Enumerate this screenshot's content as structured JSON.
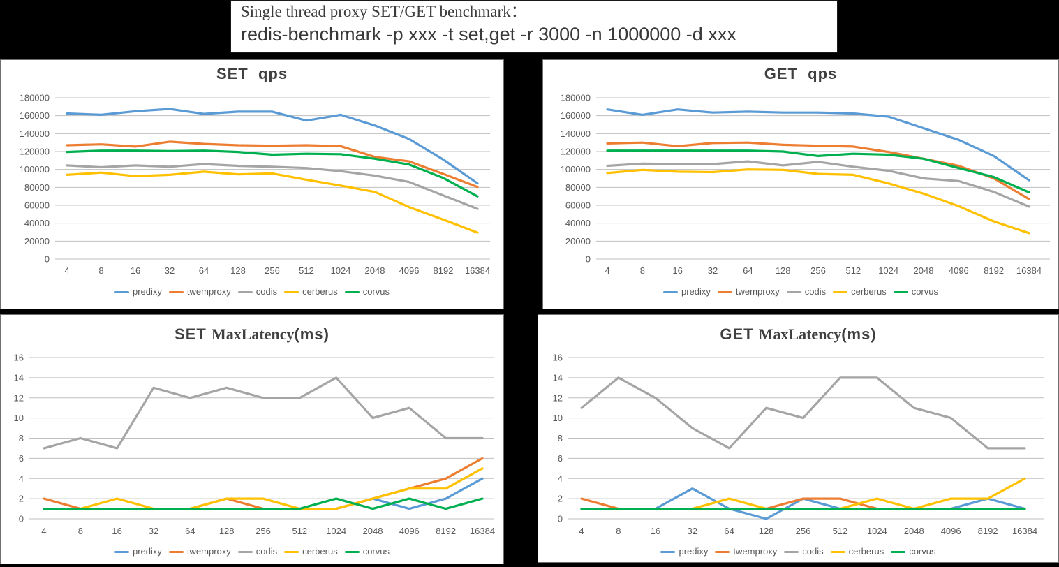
{
  "header": {
    "line1": "Single thread proxy SET/GET benchmark：",
    "line2": "redis-benchmark -p xxx -t set,get -r 3000 -n 1000000 -d xxx"
  },
  "colors": {
    "predixy": "#5B9BD5",
    "twemproxy": "#ED7D31",
    "codis": "#A5A5A5",
    "cerberus": "#FFC000",
    "corvus": "#00B050",
    "grid": "#BFBFBF",
    "axis_text": "#595959",
    "title_text": "#404040"
  },
  "legend": [
    "predixy",
    "twemproxy",
    "codis",
    "cerberus",
    "corvus"
  ],
  "chart_data": [
    {
      "type": "line",
      "id": "set-qps",
      "title": "SET  qps",
      "title_runs": [
        {
          "text": "SET  qps",
          "font": "sans"
        }
      ],
      "categories": [
        "4",
        "8",
        "16",
        "32",
        "64",
        "128",
        "256",
        "512",
        "1024",
        "2048",
        "4096",
        "8192",
        "16384"
      ],
      "xlabel": "",
      "ylabel": "",
      "ylim": [
        0,
        180000
      ],
      "ystep": 20000,
      "grid": true,
      "legend_position": "bottom",
      "series": [
        {
          "name": "predixy",
          "values": [
            162500,
            161000,
            165000,
            167500,
            162000,
            164500,
            164500,
            154500,
            161000,
            149000,
            134000,
            111000,
            84500
          ]
        },
        {
          "name": "twemproxy",
          "values": [
            127000,
            128000,
            125500,
            131000,
            128500,
            127000,
            126500,
            127000,
            126000,
            114000,
            109000,
            95000,
            80500
          ]
        },
        {
          "name": "codis",
          "values": [
            104500,
            102500,
            104500,
            103000,
            106000,
            104000,
            103000,
            101500,
            98000,
            93000,
            86000,
            71000,
            56000
          ]
        },
        {
          "name": "cerberus",
          "values": [
            94000,
            96500,
            92500,
            94000,
            97500,
            94500,
            95500,
            88500,
            82000,
            75000,
            58000,
            44000,
            29500
          ]
        },
        {
          "name": "corvus",
          "values": [
            119500,
            121000,
            121000,
            120500,
            121000,
            119500,
            116500,
            117500,
            117000,
            112000,
            105500,
            90500,
            70000
          ]
        }
      ]
    },
    {
      "type": "line",
      "id": "get-qps",
      "title": "GET  qps",
      "title_runs": [
        {
          "text": "GET  qps",
          "font": "sans"
        }
      ],
      "categories": [
        "4",
        "8",
        "16",
        "32",
        "64",
        "128",
        "256",
        "512",
        "1024",
        "2048",
        "4096",
        "8192",
        "16384"
      ],
      "xlabel": "",
      "ylabel": "",
      "ylim": [
        0,
        180000
      ],
      "ystep": 20000,
      "grid": true,
      "legend_position": "bottom",
      "series": [
        {
          "name": "predixy",
          "values": [
            167000,
            161000,
            167000,
            163500,
            164500,
            163500,
            163500,
            162500,
            159000,
            146000,
            133000,
            115000,
            88000
          ]
        },
        {
          "name": "twemproxy",
          "values": [
            129000,
            130000,
            126000,
            129500,
            130000,
            127500,
            126500,
            125500,
            119500,
            112000,
            104000,
            90000,
            67000
          ]
        },
        {
          "name": "codis",
          "values": [
            104000,
            106500,
            106000,
            106000,
            109000,
            104500,
            108500,
            103000,
            98500,
            90000,
            87000,
            75000,
            58500
          ]
        },
        {
          "name": "cerberus",
          "values": [
            96000,
            99500,
            97500,
            97000,
            100000,
            99500,
            95000,
            94000,
            84500,
            73000,
            59000,
            42000,
            29000
          ]
        },
        {
          "name": "corvus",
          "values": [
            121000,
            121000,
            121000,
            121000,
            121000,
            120000,
            115000,
            117500,
            116500,
            112000,
            101500,
            91500,
            74500
          ]
        }
      ]
    },
    {
      "type": "line",
      "id": "set-maxlatency",
      "title": "SET MaxLatency(ms)",
      "title_runs": [
        {
          "text": "SET ",
          "font": "sans"
        },
        {
          "text": "MaxLatency",
          "font": "serif"
        },
        {
          "text": "(ms)",
          "font": "sans"
        }
      ],
      "categories": [
        "4",
        "8",
        "16",
        "32",
        "64",
        "128",
        "256",
        "512",
        "1024",
        "2048",
        "4096",
        "8192",
        "16384"
      ],
      "xlabel": "",
      "ylabel": "",
      "ylim": [
        0,
        16
      ],
      "ystep": 2,
      "grid": true,
      "legend_position": "bottom",
      "series": [
        {
          "name": "predixy",
          "values": [
            1,
            1,
            1,
            1,
            1,
            1,
            1,
            1,
            1,
            2,
            1,
            2,
            4
          ]
        },
        {
          "name": "twemproxy",
          "values": [
            2,
            1,
            1,
            1,
            1,
            2,
            1,
            1,
            1,
            2,
            3,
            4,
            6
          ]
        },
        {
          "name": "codis",
          "values": [
            7,
            8,
            7,
            13,
            12,
            13,
            12,
            12,
            14,
            10,
            11,
            8,
            8
          ]
        },
        {
          "name": "cerberus",
          "values": [
            1,
            1,
            2,
            1,
            1,
            2,
            2,
            1,
            1,
            2,
            3,
            3,
            5
          ]
        },
        {
          "name": "corvus",
          "values": [
            1,
            1,
            1,
            1,
            1,
            1,
            1,
            1,
            2,
            1,
            2,
            1,
            2
          ]
        }
      ]
    },
    {
      "type": "line",
      "id": "get-maxlatency",
      "title": "GET MaxLatency(ms)",
      "title_runs": [
        {
          "text": "GET ",
          "font": "sans"
        },
        {
          "text": "MaxLatency",
          "font": "serif"
        },
        {
          "text": "(ms)",
          "font": "sans"
        }
      ],
      "categories": [
        "4",
        "8",
        "16",
        "32",
        "64",
        "128",
        "256",
        "512",
        "1024",
        "2048",
        "4096",
        "8192",
        "16384"
      ],
      "xlabel": "",
      "ylabel": "",
      "ylim": [
        0,
        16
      ],
      "ystep": 2,
      "grid": true,
      "legend_position": "bottom",
      "series": [
        {
          "name": "predixy",
          "values": [
            1,
            1,
            1,
            3,
            1,
            0,
            2,
            1,
            1,
            1,
            1,
            2,
            1
          ]
        },
        {
          "name": "twemproxy",
          "values": [
            2,
            1,
            1,
            1,
            1,
            1,
            2,
            2,
            1,
            1,
            1,
            1,
            1
          ]
        },
        {
          "name": "codis",
          "values": [
            11,
            14,
            12,
            9,
            7,
            11,
            10,
            14,
            14,
            11,
            10,
            7,
            7
          ]
        },
        {
          "name": "cerberus",
          "values": [
            1,
            1,
            1,
            1,
            2,
            1,
            1,
            1,
            2,
            1,
            2,
            2,
            4
          ]
        },
        {
          "name": "corvus",
          "values": [
            1,
            1,
            1,
            1,
            1,
            1,
            1,
            1,
            1,
            1,
            1,
            1,
            1
          ]
        }
      ]
    }
  ]
}
